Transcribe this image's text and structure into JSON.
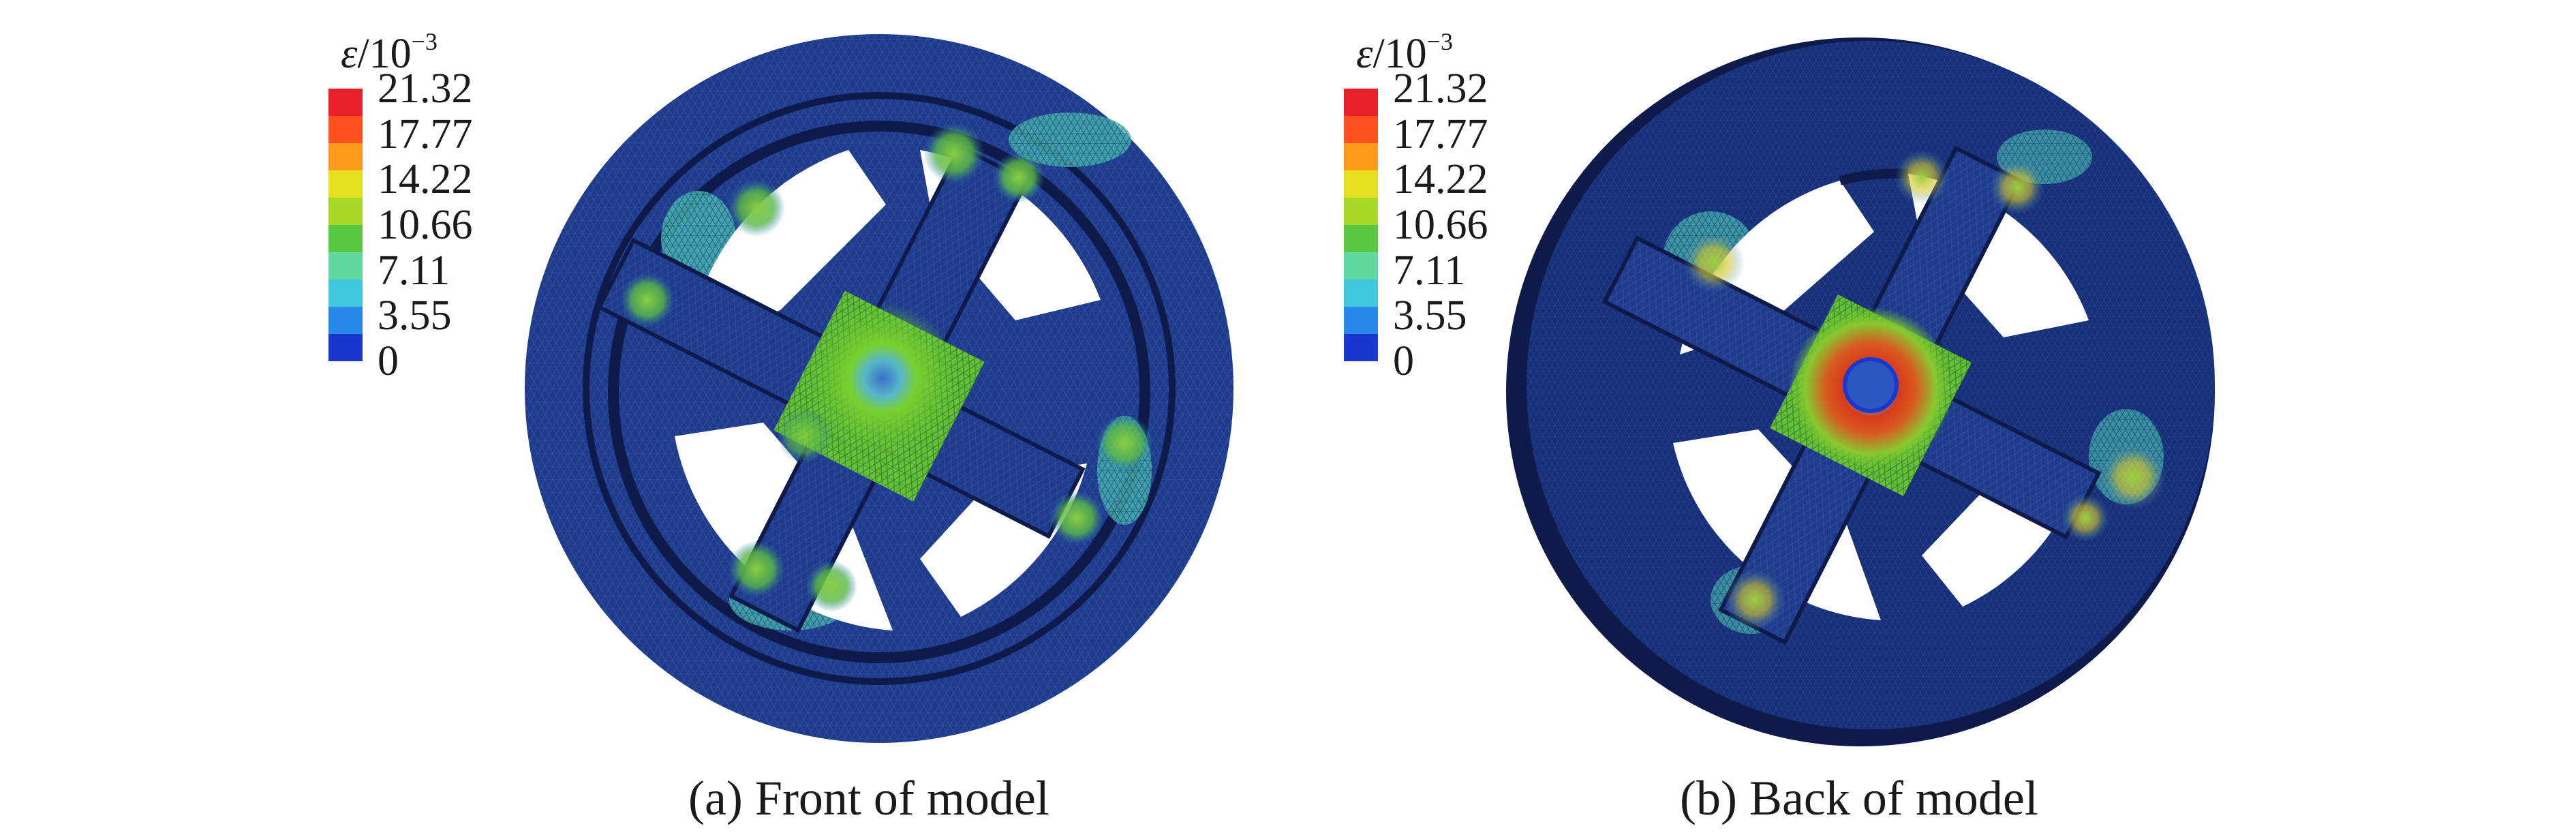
{
  "legend": {
    "symbol": "ε",
    "denominator": "/10",
    "exponent": "−3",
    "levels": [
      "21.32",
      "17.77",
      "14.22",
      "10.66",
      "7.11",
      "3.55",
      "0"
    ],
    "colors": [
      "#e8202a",
      "#ff5020",
      "#ff9a1a",
      "#e6e020",
      "#a8d828",
      "#58c840",
      "#60d8a0",
      "#40c8e0",
      "#2888e8",
      "#1838d0"
    ]
  },
  "panels": [
    {
      "id": "a",
      "caption": "(a) Front of model"
    },
    {
      "id": "b",
      "caption": "(b) Back of model"
    }
  ],
  "colors": {
    "mesh_base": "#1e3a8c",
    "mesh_dark": "#0d1a4a",
    "hole": "#ffffff",
    "strain_low": "#4ab8d0",
    "strain_mid": "#6cc830",
    "strain_high": "#d82a1a"
  }
}
